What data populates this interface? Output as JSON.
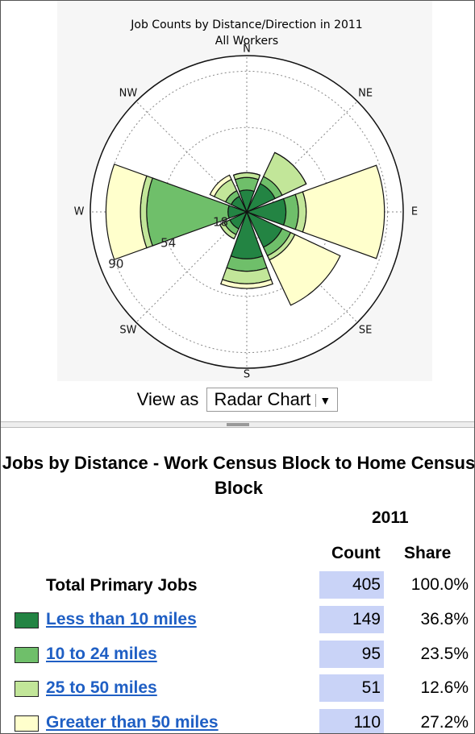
{
  "chart_data": {
    "type": "polar_bar",
    "title": "Job Counts by Distance/Direction in 2011",
    "subtitle": "All Workers",
    "categories": [
      "N",
      "NE",
      "E",
      "SE",
      "S",
      "SW",
      "W",
      "NW"
    ],
    "series": [
      {
        "name": "Less than 10 miles",
        "color": "#238443",
        "values": [
          14,
          20,
          25,
          25,
          30,
          12,
          12,
          11
        ]
      },
      {
        "name": "10 to 24 miles",
        "color": "#6fbf6a",
        "values": [
          8,
          5,
          8,
          6,
          8,
          4,
          52,
          4
        ]
      },
      {
        "name": "25 to 50 miles",
        "color": "#c2e699",
        "values": [
          3,
          17,
          5,
          3,
          8,
          3,
          4,
          8
        ]
      },
      {
        "name": "Greater than 50 miles",
        "color": "#ffffcc",
        "values": [
          0,
          0,
          50,
          32,
          3,
          0,
          22,
          3
        ]
      }
    ],
    "rlim": [
      0,
      100
    ],
    "rticks": [
      18,
      54,
      90
    ],
    "grid": true
  },
  "view": {
    "label": "View as",
    "option": "Radar Chart"
  },
  "table": {
    "title": "Jobs by Distance - Work Census Block to Home Census Block",
    "year": "2011",
    "columns": [
      "Count",
      "Share"
    ],
    "total": {
      "label": "Total Primary Jobs",
      "count": "405",
      "share": "100.0%"
    },
    "rows": [
      {
        "count": "149",
        "share": "36.8%"
      },
      {
        "count": "95",
        "share": "23.5%"
      },
      {
        "count": "51",
        "share": "12.6%"
      },
      {
        "count": "110",
        "share": "27.2%"
      }
    ]
  }
}
